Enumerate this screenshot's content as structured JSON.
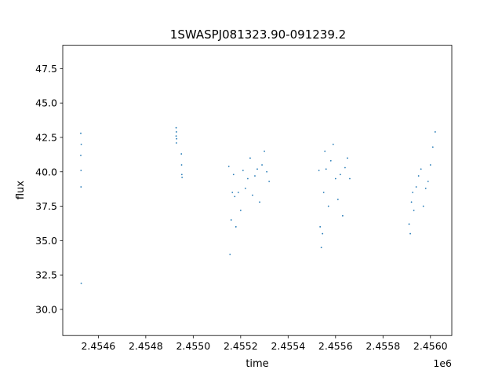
{
  "chart_data": {
    "type": "scatter",
    "title": "1SWASPJ081323.90-091239.2",
    "xlabel": "time",
    "ylabel": "flux",
    "x_offset_label": "1e6",
    "xlim": [
      2454450,
      2456090
    ],
    "ylim": [
      28.1,
      49.2
    ],
    "x_ticks": [
      2454600,
      2454800,
      2455000,
      2455200,
      2455400,
      2455600,
      2455800,
      2456000
    ],
    "x_tick_labels": [
      "2.4546",
      "2.4548",
      "2.4550",
      "2.4552",
      "2.4554",
      "2.4556",
      "2.4558",
      "2.4560"
    ],
    "y_ticks": [
      30.0,
      32.5,
      35.0,
      37.5,
      40.0,
      42.5,
      45.0,
      47.5
    ],
    "y_tick_labels": [
      "30.0",
      "32.5",
      "35.0",
      "37.5",
      "40.0",
      "42.5",
      "45.0",
      "47.5"
    ],
    "grid": false,
    "point_color": "#1f77b4",
    "series": [
      {
        "x": [
          2454526,
          2454526,
          2454527,
          2454527,
          2454528,
          2454528,
          2454928,
          2454928,
          2454929,
          2454929,
          2454930,
          2454950,
          2454951,
          2454952,
          2454953,
          2455150,
          2455155,
          2455160,
          2455165,
          2455170,
          2455175,
          2455180,
          2455190,
          2455200,
          2455210,
          2455220,
          2455230,
          2455240,
          2455250,
          2455260,
          2455270,
          2455280,
          2455290,
          2455300,
          2455310,
          2455320,
          2455530,
          2455535,
          2455540,
          2455545,
          2455550,
          2455555,
          2455560,
          2455570,
          2455580,
          2455590,
          2455600,
          2455610,
          2455620,
          2455630,
          2455640,
          2455650,
          2455660,
          2455910,
          2455915,
          2455920,
          2455925,
          2455930,
          2455940,
          2455950,
          2455960,
          2455970,
          2455980,
          2455990,
          2456000,
          2456010,
          2456020
        ],
        "y": [
          42.8,
          41.2,
          40.1,
          38.9,
          31.9,
          42.0,
          43.2,
          42.6,
          42.1,
          42.9,
          42.4,
          41.3,
          40.5,
          39.8,
          39.6,
          40.4,
          34.0,
          36.5,
          38.5,
          39.8,
          38.2,
          36.0,
          38.5,
          37.2,
          40.1,
          38.8,
          39.5,
          41.0,
          38.3,
          39.7,
          40.2,
          37.8,
          40.5,
          41.5,
          40.0,
          39.3,
          40.1,
          36.0,
          34.5,
          35.5,
          38.5,
          41.5,
          40.2,
          37.5,
          40.8,
          42.0,
          39.5,
          38.0,
          39.8,
          36.8,
          40.3,
          41.0,
          39.5,
          36.2,
          35.5,
          37.8,
          38.5,
          37.2,
          38.9,
          39.7,
          40.2,
          37.5,
          38.8,
          39.3,
          40.5,
          41.8,
          42.9
        ]
      }
    ]
  }
}
